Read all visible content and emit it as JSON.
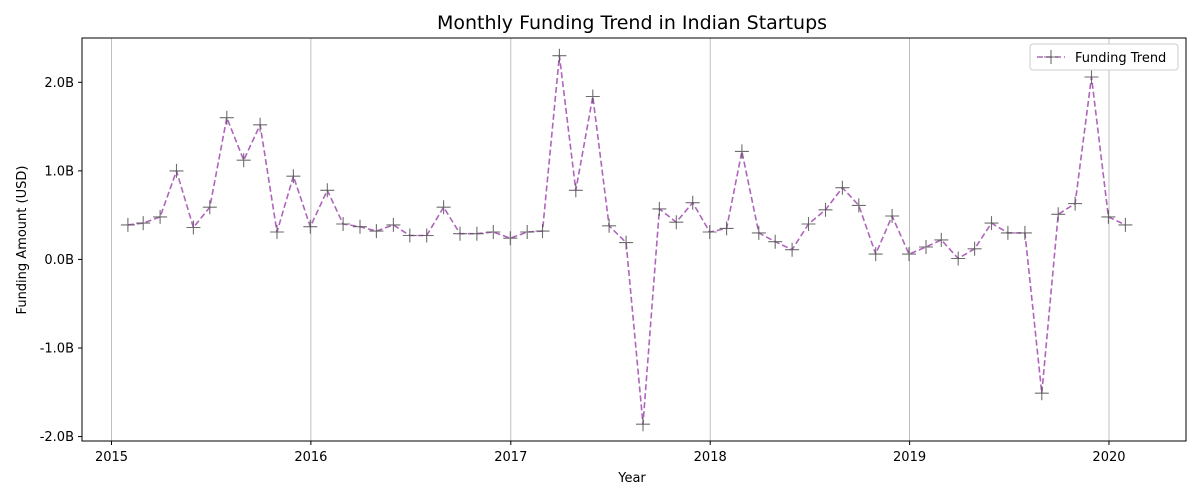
{
  "chart_data": {
    "type": "line",
    "title": "Monthly Funding Trend in Indian Startups",
    "xlabel": "Year",
    "ylabel": "Funding Amount (USD)",
    "x_ticks": [
      "2015",
      "2016",
      "2017",
      "2018",
      "2019",
      "2020"
    ],
    "y_ticks": [
      "-2.0B",
      "-1.0B",
      "0.0B",
      "1.0B",
      "2.0B"
    ],
    "y_tick_values": [
      -2.0,
      -1.0,
      0.0,
      1.0,
      2.0
    ],
    "xlim": [
      "2014-11-08",
      "2020-05-21"
    ],
    "ylim": [
      -2.05,
      2.5
    ],
    "y_unit": "billion USD",
    "grid": "vertical",
    "legend": "top-right",
    "line_color": "#9b3fab",
    "marker_color": "#555555",
    "series": [
      {
        "name": "Funding Trend",
        "points": [
          {
            "x": "2015-01-31",
            "y": 0.39
          },
          {
            "x": "2015-02-28",
            "y": 0.41
          },
          {
            "x": "2015-03-31",
            "y": 0.48
          },
          {
            "x": "2015-04-30",
            "y": 1.0
          },
          {
            "x": "2015-05-31",
            "y": 0.36
          },
          {
            "x": "2015-06-30",
            "y": 0.59
          },
          {
            "x": "2015-07-31",
            "y": 1.6
          },
          {
            "x": "2015-08-31",
            "y": 1.12
          },
          {
            "x": "2015-09-30",
            "y": 1.52
          },
          {
            "x": "2015-10-31",
            "y": 0.31
          },
          {
            "x": "2015-11-30",
            "y": 0.94
          },
          {
            "x": "2015-12-31",
            "y": 0.37
          },
          {
            "x": "2016-01-31",
            "y": 0.78
          },
          {
            "x": "2016-02-29",
            "y": 0.4
          },
          {
            "x": "2016-03-31",
            "y": 0.37
          },
          {
            "x": "2016-04-30",
            "y": 0.32
          },
          {
            "x": "2016-05-31",
            "y": 0.39
          },
          {
            "x": "2016-06-30",
            "y": 0.27
          },
          {
            "x": "2016-07-31",
            "y": 0.27
          },
          {
            "x": "2016-08-31",
            "y": 0.59
          },
          {
            "x": "2016-09-30",
            "y": 0.29
          },
          {
            "x": "2016-10-31",
            "y": 0.29
          },
          {
            "x": "2016-11-30",
            "y": 0.31
          },
          {
            "x": "2016-12-31",
            "y": 0.24
          },
          {
            "x": "2017-01-31",
            "y": 0.31
          },
          {
            "x": "2017-02-28",
            "y": 0.32
          },
          {
            "x": "2017-03-31",
            "y": 2.3
          },
          {
            "x": "2017-04-30",
            "y": 0.78
          },
          {
            "x": "2017-05-31",
            "y": 1.84
          },
          {
            "x": "2017-06-30",
            "y": 0.38
          },
          {
            "x": "2017-07-31",
            "y": 0.19
          },
          {
            "x": "2017-08-31",
            "y": -1.86
          },
          {
            "x": "2017-09-30",
            "y": 0.57
          },
          {
            "x": "2017-10-31",
            "y": 0.42
          },
          {
            "x": "2017-11-30",
            "y": 0.64
          },
          {
            "x": "2017-12-31",
            "y": 0.31
          },
          {
            "x": "2018-01-31",
            "y": 0.35
          },
          {
            "x": "2018-02-28",
            "y": 1.22
          },
          {
            "x": "2018-03-31",
            "y": 0.3
          },
          {
            "x": "2018-04-30",
            "y": 0.2
          },
          {
            "x": "2018-05-31",
            "y": 0.11
          },
          {
            "x": "2018-06-30",
            "y": 0.4
          },
          {
            "x": "2018-07-31",
            "y": 0.56
          },
          {
            "x": "2018-08-31",
            "y": 0.81
          },
          {
            "x": "2018-09-30",
            "y": 0.61
          },
          {
            "x": "2018-10-31",
            "y": 0.06
          },
          {
            "x": "2018-11-30",
            "y": 0.49
          },
          {
            "x": "2018-12-31",
            "y": 0.06
          },
          {
            "x": "2019-01-31",
            "y": 0.14
          },
          {
            "x": "2019-02-28",
            "y": 0.22
          },
          {
            "x": "2019-03-31",
            "y": 0.01
          },
          {
            "x": "2019-04-30",
            "y": 0.12
          },
          {
            "x": "2019-05-31",
            "y": 0.41
          },
          {
            "x": "2019-06-30",
            "y": 0.3
          },
          {
            "x": "2019-07-31",
            "y": 0.3
          },
          {
            "x": "2019-08-31",
            "y": -1.51
          },
          {
            "x": "2019-09-30",
            "y": 0.51
          },
          {
            "x": "2019-10-31",
            "y": 0.63
          },
          {
            "x": "2019-11-30",
            "y": 2.06
          },
          {
            "x": "2019-12-31",
            "y": 0.48
          },
          {
            "x": "2020-01-31",
            "y": 0.39
          }
        ]
      }
    ]
  }
}
